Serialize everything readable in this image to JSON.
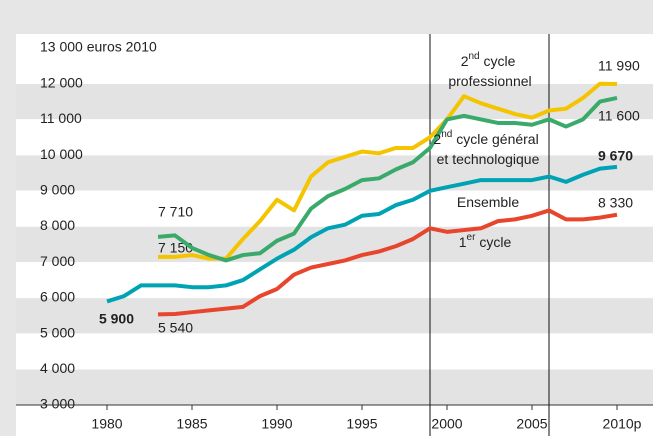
{
  "chart_data": {
    "type": "line",
    "x": [
      1980,
      1981,
      1982,
      1983,
      1984,
      1985,
      1986,
      1987,
      1988,
      1989,
      1990,
      1991,
      1992,
      1993,
      1994,
      1995,
      1996,
      1997,
      1998,
      1999,
      2000,
      2001,
      2002,
      2003,
      2004,
      2005,
      2006,
      2007,
      2008,
      2009,
      2010
    ],
    "xlim": [
      1980,
      2010
    ],
    "xticks": [
      1980,
      1985,
      1990,
      1995,
      2000,
      2005,
      {
        "value": 2010,
        "label": "2010p"
      }
    ],
    "ylim": [
      3000,
      13000
    ],
    "yticks": [
      {
        "value": 3000,
        "label": "3 000"
      },
      {
        "value": 4000,
        "label": "4 000"
      },
      {
        "value": 5000,
        "label": "5 000"
      },
      {
        "value": 6000,
        "label": "6 000"
      },
      {
        "value": 7000,
        "label": "7 000"
      },
      {
        "value": 8000,
        "label": "8 000"
      },
      {
        "value": 9000,
        "label": "9 000"
      },
      {
        "value": 10000,
        "label": "10 000"
      },
      {
        "value": 11000,
        "label": "11 000"
      },
      {
        "value": 12000,
        "label": "12 000"
      },
      {
        "value": 13000,
        "label": "13 000 euros 2010"
      }
    ],
    "banded_background": true,
    "dividers": [
      1999,
      2006
    ],
    "series": [
      {
        "name": "2nd cycle professionnel",
        "color": "#f5c400",
        "values": [
          null,
          null,
          null,
          7150,
          7150,
          7200,
          7100,
          7100,
          7650,
          8150,
          8750,
          8450,
          9400,
          9800,
          9950,
          10100,
          10050,
          10200,
          10200,
          10500,
          11000,
          11650,
          11450,
          11300,
          11150,
          11050,
          11250,
          11300,
          11600,
          12000,
          11990
        ],
        "start_label": "7 150",
        "start_value": 7150,
        "end_label": "11 990",
        "end_value": 11990
      },
      {
        "name": "2nd cycle général et technologique",
        "color": "#3aaa6a",
        "values": [
          null,
          null,
          null,
          7710,
          7750,
          7400,
          7200,
          7050,
          7200,
          7250,
          7600,
          7800,
          8500,
          8850,
          9050,
          9300,
          9350,
          9600,
          9800,
          10200,
          11000,
          11100,
          11000,
          10900,
          10900,
          10850,
          11000,
          10800,
          11000,
          11500,
          11600
        ],
        "start_label": "7 710",
        "start_value": 7710,
        "end_label": "11 600",
        "end_value": 11600
      },
      {
        "name": "Ensemble",
        "color": "#00a3b4",
        "emphasis": true,
        "values": [
          5900,
          6050,
          6350,
          6350,
          6350,
          6300,
          6300,
          6350,
          6500,
          6800,
          7100,
          7350,
          7700,
          7950,
          8050,
          8300,
          8350,
          8600,
          8750,
          9000,
          9100,
          9200,
          9300,
          9300,
          9300,
          9300,
          9400,
          9250,
          9450,
          9620,
          9670
        ],
        "start_label": "5 900",
        "start_value": 5900,
        "end_label": "9 670",
        "end_value": 9670
      },
      {
        "name": "1er cycle",
        "color": "#e8462c",
        "values": [
          null,
          null,
          null,
          5540,
          5550,
          5600,
          5650,
          5700,
          5750,
          6050,
          6250,
          6650,
          6850,
          6950,
          7050,
          7200,
          7300,
          7450,
          7650,
          7950,
          7850,
          7900,
          7950,
          8150,
          8200,
          8300,
          8450,
          8200,
          8200,
          8250,
          8330
        ],
        "start_label": "5 540",
        "start_value": 5540,
        "end_label": "8 330",
        "end_value": 8330
      }
    ]
  }
}
